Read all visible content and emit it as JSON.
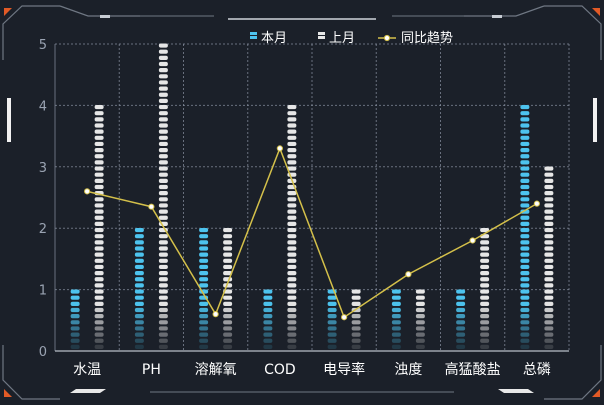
{
  "colors": {
    "background": "#1b2029",
    "current_month": "#4dc3ee",
    "last_month": "#e6e6e6",
    "trend": "#d4c04a",
    "frame": "#6f7783",
    "accent": "#e25a26",
    "grid": "#8a93a3",
    "text": "#ffffff",
    "axis_text": "#9aa3b2"
  },
  "chart_data": {
    "type": "bar",
    "categories": [
      "水温",
      "PH",
      "溶解氧",
      "COD",
      "电导率",
      "浊度",
      "高猛酸盐",
      "总磷"
    ],
    "series": [
      {
        "name": "本月",
        "type": "bar",
        "values": [
          1,
          2,
          2,
          1,
          1,
          1,
          1,
          4
        ]
      },
      {
        "name": "上月",
        "type": "bar",
        "values": [
          4,
          5,
          2,
          4,
          1,
          1,
          2,
          3
        ]
      },
      {
        "name": "同比趋势",
        "type": "line",
        "values": [
          2.6,
          2.35,
          0.6,
          3.3,
          0.55,
          1.25,
          1.8,
          2.4
        ]
      }
    ],
    "y_ticks": [
      "0",
      "1",
      "2",
      "3",
      "4",
      "5"
    ],
    "ylim": [
      0,
      5
    ],
    "grid": true,
    "legend_position": "top-center"
  }
}
